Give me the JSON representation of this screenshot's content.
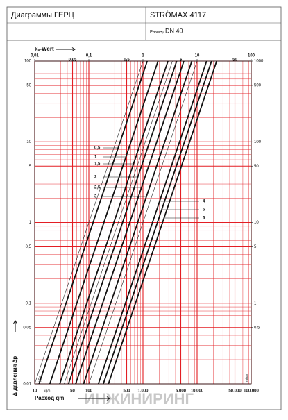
{
  "header": {
    "title": "Диаграммы ГЕРЦ",
    "product": "STRÖMAX 4117",
    "size_label": "Размер",
    "size": "DN 40"
  },
  "watermark": "ИНЖИНИРИНГ",
  "chart_data": {
    "type": "line",
    "log_x": true,
    "log_y": true,
    "grid": true,
    "grid_color": "#e31e24",
    "top_label": "kᵥ-Wert",
    "x_label": "Расход qm",
    "x_unit": "kg/h",
    "y_label": "∆ давления ∆p",
    "y_unit": "kPa",
    "y2_unit": "mbar",
    "xlim": [
      10,
      100000
    ],
    "xticks": [
      10,
      50,
      100,
      500,
      {
        "value": 1000,
        "label": "1.000"
      },
      {
        "value": 5000,
        "label": "5.000"
      },
      {
        "value": 10000,
        "label": "10.000"
      },
      {
        "value": 50000,
        "label": "50.000"
      },
      {
        "value": 100000,
        "label": "100.000"
      }
    ],
    "x2lim": [
      0.01,
      100
    ],
    "x2ticks": [
      {
        "value": 0.01,
        "label": "0,01"
      },
      {
        "value": 0.05,
        "label": "0,05"
      },
      {
        "value": 0.1,
        "label": "0,1"
      },
      {
        "value": 0.5,
        "label": "0,5"
      },
      1,
      5,
      10,
      50,
      100
    ],
    "ylim": [
      0.01,
      100
    ],
    "yticks": [
      {
        "value": 0.01,
        "label": "0,01"
      },
      {
        "value": 0.05,
        "label": "0,05"
      },
      {
        "value": 0.1,
        "label": "0,1"
      },
      {
        "value": 0.5,
        "label": "0,5"
      },
      1,
      5,
      10,
      50,
      100
    ],
    "y2lim": [
      0.1,
      1000
    ],
    "y2ticks": [
      {
        "value": 0.5,
        "label": "0,5"
      },
      1,
      5,
      10,
      50,
      100,
      500,
      1000
    ],
    "series": [
      {
        "name": "0,5",
        "color": "#111111",
        "width": 1.8,
        "x": [
          12,
          1200
        ],
        "values": [
          0.01,
          100
        ]
      },
      {
        "name": "1",
        "color": "#111111",
        "width": 1.8,
        "x": [
          19,
          1900
        ],
        "values": [
          0.01,
          100
        ]
      },
      {
        "name": "1,5",
        "color": "#111111",
        "width": 1.8,
        "x": [
          29,
          2900
        ],
        "values": [
          0.01,
          100
        ]
      },
      {
        "name": "2",
        "color": "#111111",
        "width": 1.8,
        "x": [
          42,
          4200
        ],
        "values": [
          0.01,
          100
        ]
      },
      {
        "name": "2,5",
        "color": "#111111",
        "width": 1.8,
        "x": [
          57,
          5700
        ],
        "values": [
          0.01,
          100
        ]
      },
      {
        "name": "3",
        "color": "#111111",
        "width": 1.8,
        "x": [
          80,
          8000
        ],
        "values": [
          0.01,
          100
        ]
      },
      {
        "name": "4",
        "color": "#111111",
        "width": 1.8,
        "x": [
          150,
          15000
        ],
        "values": [
          0.01,
          100
        ]
      },
      {
        "name": "5",
        "color": "#111111",
        "width": 1.8,
        "x": [
          185,
          18500
        ],
        "values": [
          0.01,
          100
        ]
      },
      {
        "name": "6",
        "color": "#111111",
        "width": 1.8,
        "x": [
          230,
          23000
        ],
        "values": [
          0.01,
          100
        ]
      },
      {
        "color": "#222222",
        "width": 0.6,
        "x": [
          10,
          1000
        ],
        "values": [
          0.01,
          100
        ]
      },
      {
        "color": "#222222",
        "width": 0.6,
        "x": [
          35,
          3500
        ],
        "values": [
          0.01,
          100
        ]
      },
      {
        "color": "#222222",
        "width": 0.6,
        "x": [
          100,
          10000
        ],
        "values": [
          0.01,
          100
        ]
      }
    ]
  }
}
